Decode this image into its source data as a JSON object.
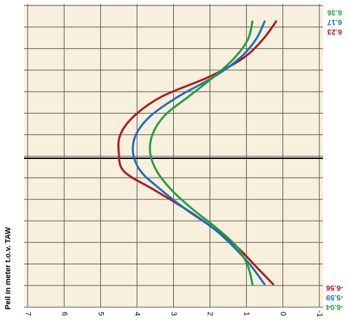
{
  "chart_data": {
    "type": "line",
    "y_label": "Peil in meter t.o.v. TAW",
    "categories": [
      null,
      null,
      null,
      null,
      null,
      null,
      null,
      null,
      null,
      null,
      null,
      null,
      null,
      null,
      null
    ],
    "xlim": [
      7.1,
      -1.1
    ],
    "xticks": [
      7,
      6,
      5,
      4,
      3,
      2,
      1,
      0,
      -1
    ],
    "grid": true,
    "series": [
      {
        "name": "red",
        "color": "#b01818",
        "high": 6.23,
        "low": -6.56,
        "values": [
          0.17,
          0.55,
          1.1,
          2.05,
          3.3,
          4.05,
          4.45,
          4.5,
          4.35,
          3.5,
          2.65,
          1.9,
          1.25,
          0.75,
          0.25
        ]
      },
      {
        "name": "blue",
        "color": "#1a6ec0",
        "high": 6.17,
        "low": -5.59,
        "values": [
          0.49,
          0.74,
          1.19,
          1.91,
          2.85,
          3.6,
          4.02,
          4.11,
          3.89,
          3.32,
          2.66,
          1.91,
          1.34,
          0.87,
          0.49
        ]
      },
      {
        "name": "green",
        "color": "#20a040",
        "high": 6.36,
        "low": -6.04,
        "values": [
          0.83,
          0.96,
          1.34,
          1.91,
          2.57,
          3.23,
          3.57,
          3.64,
          3.45,
          3.04,
          2.47,
          1.81,
          1.25,
          0.96,
          0.83
        ]
      }
    ]
  }
}
